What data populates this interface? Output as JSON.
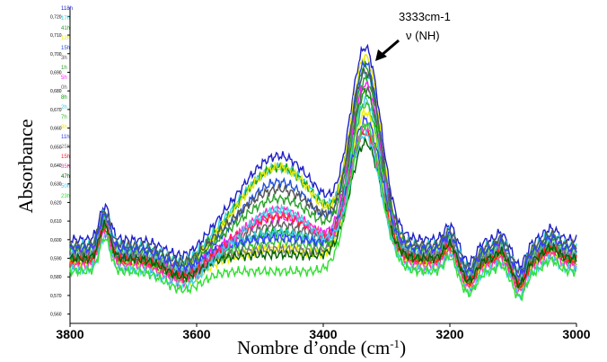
{
  "chart_data": {
    "type": "line",
    "title": "",
    "xlabel": "Nombre d’onde (cm",
    "xlabel_sup": "-1",
    "xlabel_close": ")",
    "ylabel": "Absorbance",
    "xlim": [
      3800,
      3000
    ],
    "ylim": [
      0.555,
      0.725
    ],
    "x_ticks": [
      3800,
      3600,
      3400,
      3200,
      3000
    ],
    "y_ticks": [
      {
        "v": 0.72,
        "label": "0,720"
      },
      {
        "v": 0.71,
        "label": "0,710"
      },
      {
        "v": 0.7,
        "label": "0,700"
      },
      {
        "v": 0.69,
        "label": "0,690"
      },
      {
        "v": 0.68,
        "label": "0,680"
      },
      {
        "v": 0.67,
        "label": "0,670"
      },
      {
        "v": 0.66,
        "label": "0,660"
      },
      {
        "v": 0.65,
        "label": "0,650"
      },
      {
        "v": 0.64,
        "label": "0,640"
      },
      {
        "v": 0.63,
        "label": "0,630"
      },
      {
        "v": 0.62,
        "label": "0,620"
      },
      {
        "v": 0.61,
        "label": "0,610"
      },
      {
        "v": 0.6,
        "label": "0,600"
      },
      {
        "v": 0.59,
        "label": "0,590"
      },
      {
        "v": 0.58,
        "label": "0,580"
      },
      {
        "v": 0.57,
        "label": "0,570"
      },
      {
        "v": 0.56,
        "label": "0,560"
      }
    ],
    "grid": false,
    "legend_position": "left",
    "annotation": {
      "line1": "3333cm-1",
      "line2": "ν (NH)",
      "x": 3333
    },
    "x": [
      3800,
      3780,
      3760,
      3745,
      3730,
      3710,
      3690,
      3670,
      3650,
      3630,
      3610,
      3600,
      3580,
      3560,
      3540,
      3520,
      3500,
      3480,
      3460,
      3440,
      3420,
      3400,
      3380,
      3360,
      3345,
      3333,
      3320,
      3300,
      3280,
      3260,
      3240,
      3220,
      3200,
      3180,
      3165,
      3150,
      3130,
      3120,
      3110,
      3090,
      3080,
      3060,
      3040,
      3030,
      3020,
      3000
    ],
    "series": [
      {
        "name": "118h",
        "color": "#1f1fc8",
        "peak": 0.7,
        "shoulder": 0.045,
        "base": 0.6
      },
      {
        "name": "17h",
        "color": "#2ad4e0",
        "peak": 0.686,
        "shoulder": 0.042,
        "base": 0.597
      },
      {
        "name": "41h",
        "color": "#20a020",
        "peak": 0.69,
        "shoulder": 0.044,
        "base": 0.595
      },
      {
        "name": "12h",
        "color": "#e8e800",
        "peak": 0.695,
        "shoulder": 0.046,
        "base": 0.593
      },
      {
        "name": "15h",
        "color": "#1f4fd8",
        "peak": 0.692,
        "shoulder": 0.04,
        "base": 0.591
      },
      {
        "name": "3h",
        "color": "#555555",
        "peak": 0.688,
        "shoulder": 0.03,
        "base": 0.597
      },
      {
        "name": "1h",
        "color": "#2aa02a",
        "peak": 0.684,
        "shoulder": 0.028,
        "base": 0.594
      },
      {
        "name": "5h",
        "color": "#ff20ff",
        "peak": 0.682,
        "shoulder": 0.02,
        "base": 0.592
      },
      {
        "name": "0h",
        "color": "#606060",
        "peak": 0.68,
        "shoulder": 0.018,
        "base": 0.59
      },
      {
        "name": "8h",
        "color": "#00a000",
        "peak": 0.678,
        "shoulder": 0.016,
        "base": 0.588
      },
      {
        "name": "2h",
        "color": "#40c8e0",
        "peak": 0.674,
        "shoulder": 0.012,
        "base": 0.592
      },
      {
        "name": "7h",
        "color": "#30c030",
        "peak": 0.672,
        "shoulder": 0.01,
        "base": 0.589
      },
      {
        "name": "9h",
        "color": "#f0f000",
        "peak": 0.668,
        "shoulder": 0.008,
        "base": 0.587
      },
      {
        "name": "11h",
        "color": "#3040ff",
        "peak": 0.664,
        "shoulder": 0.006,
        "base": 0.595
      },
      {
        "name": "25h",
        "color": "#7a7a7a",
        "peak": 0.66,
        "shoulder": 0.004,
        "base": 0.591
      },
      {
        "name": "15h",
        "color": "#ff2020",
        "peak": 0.656,
        "shoulder": 0.024,
        "base": 0.589
      },
      {
        "name": "35h",
        "color": "#ff30c0",
        "peak": 0.658,
        "shoulder": 0.03,
        "base": 0.586
      },
      {
        "name": "47h",
        "color": "#006000",
        "peak": 0.652,
        "shoulder": 0.002,
        "base": 0.59
      },
      {
        "name": "50h",
        "color": "#40d0f0",
        "peak": 0.654,
        "shoulder": 0.032,
        "base": 0.584
      },
      {
        "name": "23h",
        "color": "#30e030",
        "peak": 0.662,
        "shoulder": 0.0,
        "base": 0.583
      }
    ]
  }
}
